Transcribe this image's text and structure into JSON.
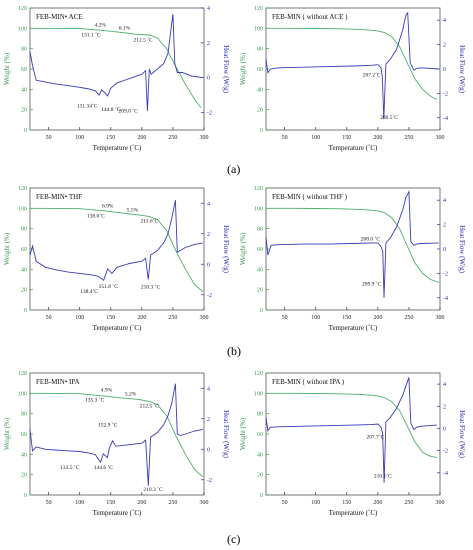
{
  "chart_data": [
    {
      "type": "line",
      "title": "FEB-MIN• ACE",
      "xlabel": "Temperature (˚C)",
      "ylabel_left": "Weight (%)",
      "ylabel_right": "Heat Flow (W/g)",
      "xlim": [
        20,
        300
      ],
      "ylim_left": [
        0,
        120
      ],
      "ylim_right": [
        -3,
        4
      ],
      "xticks": [
        "50",
        "100",
        "150",
        "200",
        "250",
        "300"
      ],
      "yticks_left": [
        "0",
        "20",
        "40",
        "60",
        "80",
        "100",
        "120"
      ],
      "yticks_right": [
        "-2",
        "0",
        "2",
        "4"
      ],
      "series": [
        {
          "axis": "left",
          "color": "#4caf68",
          "x": [
            20,
            60,
            100,
            131.1,
            160,
            190,
            212.5,
            225,
            240,
            255,
            270,
            285,
            295
          ],
          "y": [
            100,
            99.9,
            99.7,
            98.3,
            96.5,
            94.2,
            93.4,
            90.5,
            80,
            62,
            45,
            30,
            22
          ]
        },
        {
          "axis": "right",
          "color": "#3a3ab8",
          "x": [
            20,
            24,
            30,
            45,
            60,
            80,
            100,
            115,
            125,
            131.3,
            135,
            140,
            144.8,
            150,
            160,
            180,
            200,
            206,
            209,
            212,
            215,
            225,
            235,
            242,
            246,
            250,
            253,
            257,
            265,
            280,
            298
          ],
          "y": [
            1.5,
            0.7,
            -0.15,
            -0.25,
            -0.35,
            -0.45,
            -0.55,
            -0.65,
            -0.75,
            -1.0,
            -0.7,
            -0.85,
            -1.05,
            -0.6,
            -0.3,
            -0.05,
            0.2,
            0.4,
            -1.9,
            0.5,
            0.2,
            0.5,
            0.8,
            1.4,
            2.5,
            3.65,
            0.8,
            0.3,
            0.3,
            0.1,
            0.0
          ]
        }
      ],
      "annotations": [
        {
          "text": "4.2%",
          "x": 133,
          "axis": "left",
          "y": 102
        },
        {
          "text": "131.1 ˚C",
          "x": 118,
          "axis": "left",
          "y": 92
        },
        {
          "text": "6.1%",
          "x": 172,
          "axis": "left",
          "y": 99
        },
        {
          "text": "212.5 ˚C",
          "x": 202,
          "axis": "left",
          "y": 87
        },
        {
          "text": "131.34˚C",
          "x": 112,
          "axis": "right",
          "y": -1.7
        },
        {
          "text": "144.8 ˚C",
          "x": 150,
          "axis": "right",
          "y": -1.9
        },
        {
          "text": "209.0 ˚C",
          "x": 178,
          "axis": "right",
          "y": -2.0
        }
      ]
    },
    {
      "type": "line",
      "title": "FEB-MIN ( without ACE )",
      "xlabel": "Temperature (˚C)",
      "ylabel_left": "Weight (%)",
      "ylabel_right": "Heat Flow (W/g)",
      "xlim": [
        20,
        300
      ],
      "ylim_left": [
        0,
        120
      ],
      "ylim_right": [
        -5,
        5
      ],
      "xticks": [
        "50",
        "100",
        "150",
        "200",
        "250",
        "300"
      ],
      "yticks_left": [
        "0",
        "20",
        "40",
        "60",
        "80",
        "100",
        "120"
      ],
      "yticks_right": [
        "-4",
        "-2",
        "0",
        "2",
        "4"
      ],
      "series": [
        {
          "axis": "left",
          "color": "#4caf68",
          "x": [
            20,
            60,
            100,
            140,
            170,
            195,
            210,
            222,
            235,
            248,
            260,
            272,
            285,
            295
          ],
          "y": [
            100,
            100,
            99.8,
            99.5,
            99,
            98,
            96,
            92,
            82,
            65,
            50,
            40,
            33,
            30
          ]
        },
        {
          "axis": "right",
          "color": "#3a3ab8",
          "x": [
            20,
            23,
            27,
            40,
            80,
            120,
            160,
            190,
            200,
            205,
            207.2,
            209.5,
            213,
            220,
            230,
            240,
            245,
            248,
            252,
            258,
            262,
            270,
            298
          ],
          "y": [
            0.8,
            -0.3,
            0.0,
            0.1,
            0.15,
            0.2,
            0.25,
            0.3,
            0.35,
            0.1,
            -0.6,
            -4.1,
            0.4,
            0.8,
            1.6,
            3.2,
            4.4,
            4.6,
            0.5,
            -0.1,
            0.05,
            0.1,
            0.0
          ]
        }
      ],
      "annotations": [
        {
          "text": "207.2˚C",
          "x": 190,
          "axis": "right",
          "y": -0.6
        },
        {
          "text": "209.5˚C",
          "x": 218,
          "axis": "right",
          "y": -4.1
        }
      ]
    },
    {
      "type": "line",
      "title": "FEB-MIN• THF",
      "xlabel": "Temperature (˚C)",
      "ylabel_left": "Weight (%)",
      "ylabel_right": "Heat Flow (W/g)",
      "xlim": [
        20,
        300
      ],
      "ylim_left": [
        0,
        120
      ],
      "ylim_right": [
        -3,
        5
      ],
      "xticks": [
        "50",
        "100",
        "150",
        "200",
        "250",
        "300"
      ],
      "yticks_left": [
        "0",
        "20",
        "40",
        "60",
        "80",
        "100",
        "120"
      ],
      "yticks_right": [
        "-2",
        "0",
        "2",
        "4"
      ],
      "series": [
        {
          "axis": "left",
          "color": "#4caf68",
          "x": [
            20,
            60,
            100,
            138.6,
            170,
            195,
            211.6,
            225,
            240,
            255,
            270,
            285,
            298
          ],
          "y": [
            100,
            99.9,
            99.6,
            97.6,
            95.2,
            93.5,
            92.1,
            89,
            78,
            58,
            40,
            25,
            18
          ]
        },
        {
          "axis": "right",
          "color": "#3a3ab8",
          "x": [
            20,
            24,
            30,
            45,
            60,
            80,
            100,
            120,
            130,
            138.4,
            145,
            151.8,
            160,
            180,
            200,
            206,
            210.3,
            214,
            225,
            235,
            242,
            248,
            254,
            257,
            262,
            270,
            285,
            298
          ],
          "y": [
            0.6,
            1.2,
            0.2,
            -0.2,
            -0.35,
            -0.5,
            -0.6,
            -0.7,
            -0.8,
            -1.05,
            -0.3,
            -0.6,
            -0.2,
            0.05,
            0.2,
            0.4,
            -1.0,
            0.6,
            0.9,
            1.4,
            2.0,
            3.0,
            4.2,
            0.8,
            0.9,
            1.1,
            1.3,
            1.4
          ]
        }
      ],
      "annotations": [
        {
          "text": "6.9%",
          "x": 145,
          "axis": "left",
          "y": 101
        },
        {
          "text": "138.6˚C",
          "x": 126,
          "axis": "left",
          "y": 91
        },
        {
          "text": "5.5%",
          "x": 185,
          "axis": "left",
          "y": 97
        },
        {
          "text": "211.6˚C",
          "x": 212,
          "axis": "left",
          "y": 86
        },
        {
          "text": "138.4˚C",
          "x": 115,
          "axis": "right",
          "y": -1.9
        },
        {
          "text": "151.8 ˚C",
          "x": 146,
          "axis": "right",
          "y": -1.55
        },
        {
          "text": "210.3 ˚C",
          "x": 214,
          "axis": "right",
          "y": -1.6
        }
      ]
    },
    {
      "type": "line",
      "title": "FEB-MIN ( without THF )",
      "xlabel": "Temperature (˚C)",
      "ylabel_left": "Weight (%)",
      "ylabel_right": "Heat Flow (W/g)",
      "xlim": [
        20,
        300
      ],
      "ylim_left": [
        0,
        120
      ],
      "ylim_right": [
        -5,
        5
      ],
      "xticks": [
        "50",
        "100",
        "150",
        "200",
        "250",
        "300"
      ],
      "yticks_left": [
        "0",
        "20",
        "40",
        "60",
        "80",
        "100",
        "120"
      ],
      "yticks_right": [
        "-4",
        "-2",
        "0",
        "2",
        "4"
      ],
      "series": [
        {
          "axis": "left",
          "color": "#4caf68",
          "x": [
            20,
            60,
            100,
            140,
            170,
            195,
            210,
            222,
            235,
            248,
            260,
            272,
            285,
            298
          ],
          "y": [
            100,
            100,
            99.8,
            99.5,
            99,
            98,
            96,
            91,
            80,
            62,
            46,
            36,
            30,
            27
          ]
        },
        {
          "axis": "right",
          "color": "#3a3ab8",
          "x": [
            20,
            23,
            28,
            40,
            80,
            120,
            160,
            190,
            200,
            205,
            208,
            209.9,
            213,
            220,
            230,
            240,
            245,
            250,
            253,
            258,
            262,
            270,
            298
          ],
          "y": [
            1.0,
            -0.5,
            0.3,
            0.35,
            0.4,
            0.4,
            0.45,
            0.5,
            0.5,
            0.2,
            -0.2,
            -4.0,
            0.5,
            0.9,
            1.8,
            3.2,
            4.2,
            4.7,
            0.6,
            0.3,
            0.4,
            0.45,
            0.5
          ]
        }
      ],
      "annotations": [
        {
          "text": "208.0 ˚C",
          "x": 188,
          "axis": "right",
          "y": 0.7
        },
        {
          "text": "209.9 ˚C",
          "x": 190,
          "axis": "right",
          "y": -3.0
        }
      ]
    },
    {
      "type": "line",
      "title": "FEB-MIN• IPA",
      "xlabel": "Temperature (˚C)",
      "ylabel_left": "Weight (%)",
      "ylabel_right": "Heat Flow (W/g)",
      "xlim": [
        20,
        300
      ],
      "ylim_left": [
        0,
        120
      ],
      "ylim_right": [
        -3,
        5
      ],
      "xticks": [
        "50",
        "100",
        "150",
        "200",
        "250",
        "300"
      ],
      "yticks_left": [
        "0",
        "20",
        "40",
        "60",
        "80",
        "100",
        "120"
      ],
      "yticks_right": [
        "-2",
        "0",
        "2",
        "4"
      ],
      "series": [
        {
          "axis": "left",
          "color": "#4caf68",
          "x": [
            20,
            60,
            100,
            135.3,
            165,
            195,
            212.5,
            225,
            240,
            255,
            270,
            285,
            298
          ],
          "y": [
            100,
            99.9,
            99.6,
            97.6,
            95.6,
            94.0,
            92.0,
            89,
            78,
            58,
            40,
            25,
            18
          ]
        },
        {
          "axis": "right",
          "color": "#3a3ab8",
          "x": [
            20,
            24,
            30,
            45,
            60,
            80,
            100,
            115,
            125,
            133.5,
            138,
            144.6,
            148,
            152.9,
            158,
            180,
            200,
            206,
            210.3,
            214,
            225,
            235,
            242,
            248,
            254,
            257,
            262,
            270,
            285,
            298
          ],
          "y": [
            1.3,
            -0.1,
            0.15,
            0.0,
            -0.05,
            -0.1,
            -0.15,
            -0.25,
            -0.35,
            -0.85,
            -0.3,
            -0.55,
            0.1,
            0.55,
            0.2,
            0.3,
            0.4,
            0.6,
            -2.4,
            0.8,
            1.1,
            1.6,
            2.2,
            3.0,
            4.3,
            1.0,
            0.9,
            1.0,
            1.2,
            1.3
          ]
        }
      ],
      "annotations": [
        {
          "text": "4.9%",
          "x": 143,
          "axis": "left",
          "y": 102
        },
        {
          "text": "135.3 ˚C",
          "x": 124,
          "axis": "left",
          "y": 92
        },
        {
          "text": "5.2%",
          "x": 182,
          "axis": "left",
          "y": 98
        },
        {
          "text": "212.5 ˚C",
          "x": 212,
          "axis": "left",
          "y": 86
        },
        {
          "text": "133.5 ˚C",
          "x": 84,
          "axis": "right",
          "y": -1.3
        },
        {
          "text": "144.6 ˚C",
          "x": 138,
          "axis": "right",
          "y": -1.3
        },
        {
          "text": "152.9 ˚C",
          "x": 145,
          "axis": "right",
          "y": 1.5
        },
        {
          "text": "210.3 ˚C",
          "x": 218,
          "axis": "right",
          "y": -2.75
        }
      ]
    },
    {
      "type": "line",
      "title": "FEB-MIN ( without IPA )",
      "xlabel": "Temperature (˚C)",
      "ylabel_left": "Weight (%)",
      "ylabel_right": "Heat Flow (W/g)",
      "xlim": [
        20,
        300
      ],
      "ylim_left": [
        0,
        120
      ],
      "ylim_right": [
        -6,
        5
      ],
      "xticks": [
        "50",
        "100",
        "150",
        "200",
        "250",
        "300"
      ],
      "yticks_left": [
        "0",
        "20",
        "40",
        "60",
        "80",
        "100",
        "120"
      ],
      "yticks_right": [
        "-4",
        "-2",
        "0",
        "2",
        "4"
      ],
      "series": [
        {
          "axis": "left",
          "color": "#4caf68",
          "x": [
            20,
            60,
            100,
            140,
            170,
            195,
            210,
            222,
            235,
            248,
            260,
            272,
            285,
            295
          ],
          "y": [
            100,
            100,
            99.8,
            99.5,
            99,
            98,
            96,
            92,
            83,
            67,
            52,
            42,
            38,
            37
          ]
        },
        {
          "axis": "right",
          "color": "#3a3ab8",
          "x": [
            20,
            23,
            27,
            40,
            80,
            120,
            160,
            190,
            200,
            205,
            207.7,
            210.1,
            213,
            220,
            230,
            240,
            245,
            250,
            253,
            258,
            262,
            270,
            295
          ],
          "y": [
            1.0,
            -0.2,
            0.1,
            0.15,
            0.2,
            0.25,
            0.3,
            0.35,
            0.4,
            0.1,
            -0.4,
            -4.9,
            0.6,
            1.0,
            1.8,
            3.0,
            3.8,
            4.6,
            0.5,
            -0.1,
            0.1,
            0.2,
            0.3
          ]
        }
      ],
      "annotations": [
        {
          "text": "207.7˚C",
          "x": 196,
          "axis": "right",
          "y": -0.9
        },
        {
          "text": "210.1˚C",
          "x": 208,
          "axis": "right",
          "y": -4.4
        }
      ]
    }
  ],
  "panel_labels": [
    "(a)",
    "(b)",
    "(c)"
  ],
  "styles": {
    "weight_axis_color": "#3c9a54",
    "heatflow_axis_color": "#2a2ab0",
    "weight_line_color": "#4caf68",
    "heatflow_line_color": "#3a3ab8"
  }
}
